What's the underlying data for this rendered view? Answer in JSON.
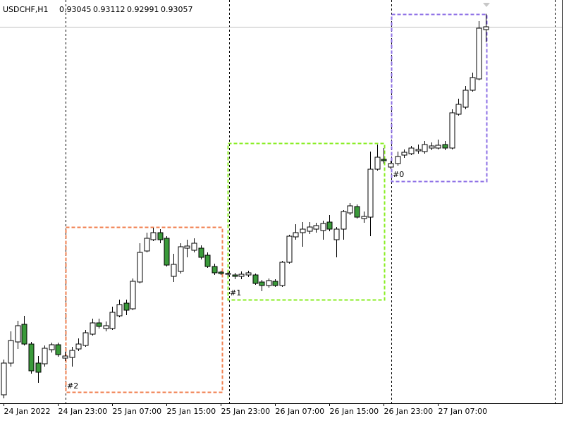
{
  "chart_data": {
    "type": "candlestick",
    "title": "USDCHF,H1",
    "categories": [
      "24 Jan 2022",
      null,
      null,
      null,
      null,
      null,
      null,
      null,
      "24 Jan 23:00",
      null,
      null,
      null,
      null,
      null,
      null,
      null,
      "25 Jan 07:00",
      null,
      null,
      null,
      null,
      null,
      null,
      null,
      "25 Jan 15:00",
      null,
      null,
      null,
      null,
      null,
      null,
      null,
      "25 Jan 23:00",
      null,
      null,
      null,
      null,
      null,
      null,
      null,
      "26 Jan 07:00",
      null,
      null,
      null,
      null,
      null,
      null,
      null,
      "26 Jan 15:00",
      null,
      null,
      null,
      null,
      null,
      null,
      null,
      "26 Jan 23:00",
      null,
      null,
      null,
      null,
      null,
      null,
      null,
      "27 Jan 07:00",
      null,
      null,
      null,
      null,
      null,
      null,
      null
    ],
    "open": [
      0.91491,
      0.91626,
      0.91716,
      0.91791,
      0.91707,
      0.91626,
      0.91623,
      0.91683,
      0.91704,
      0.91647,
      0.9165,
      0.91686,
      0.91701,
      0.91749,
      0.91797,
      0.91773,
      0.91773,
      0.91827,
      0.91881,
      0.91857,
      0.91971,
      0.92103,
      0.92151,
      0.92181,
      0.92157,
      0.91995,
      0.92016,
      0.92115,
      0.92106,
      0.92115,
      0.92085,
      0.92037,
      0.92013,
      0.92004,
      0.92001,
      0.91995,
      0.92001,
      0.92001,
      0.91971,
      0.91956,
      0.91974,
      0.91956,
      0.92055,
      0.92163,
      0.92181,
      0.92187,
      0.92196,
      0.9219,
      0.92226,
      0.92151,
      0.92196,
      0.92265,
      0.92292,
      0.92241,
      0.92247,
      0.92451,
      0.92493,
      0.9246,
      0.92475,
      0.92511,
      0.92517,
      0.92529,
      0.92526,
      0.92541,
      0.92541,
      0.92556,
      0.92541,
      0.92685,
      0.92715,
      0.92787,
      0.92835,
      0.93045
    ],
    "high": [
      0.91641,
      0.91761,
      0.91806,
      0.91827,
      0.91716,
      0.91656,
      0.91701,
      0.91713,
      0.91713,
      0.91671,
      0.91695,
      0.91731,
      0.91767,
      0.91815,
      0.91815,
      0.91803,
      0.91866,
      0.91896,
      0.91896,
      0.91986,
      0.92136,
      0.92181,
      0.92202,
      0.92196,
      0.92166,
      0.92091,
      0.92136,
      0.92151,
      0.92157,
      0.92127,
      0.92097,
      0.92049,
      0.92019,
      0.92013,
      0.9201,
      0.92016,
      0.92019,
      0.92007,
      0.9198,
      0.91986,
      0.91983,
      0.92061,
      0.92172,
      0.92217,
      0.92226,
      0.92226,
      0.92223,
      0.92232,
      0.92256,
      0.92205,
      0.92277,
      0.92307,
      0.92301,
      0.92271,
      0.92526,
      0.92556,
      0.92541,
      0.92487,
      0.92526,
      0.92535,
      0.9255,
      0.92556,
      0.92571,
      0.92565,
      0.92577,
      0.92571,
      0.92706,
      0.92751,
      0.92805,
      0.92862,
      0.93081,
      0.93112
    ],
    "low": [
      0.91476,
      0.91611,
      0.91686,
      0.91701,
      0.91581,
      0.91542,
      0.91611,
      0.91671,
      0.91653,
      0.91635,
      0.91611,
      0.91677,
      0.91695,
      0.91743,
      0.91773,
      0.91761,
      0.91767,
      0.91821,
      0.9183,
      0.91851,
      0.91965,
      0.92097,
      0.92145,
      0.92136,
      0.92037,
      0.91971,
      0.92007,
      0.92076,
      0.92097,
      0.92067,
      0.92031,
      0.92001,
      0.92001,
      0.91995,
      0.91983,
      0.91983,
      0.91992,
      0.91959,
      0.91932,
      0.91947,
      0.9195,
      0.9195,
      0.92049,
      0.92151,
      0.92121,
      0.92175,
      0.92181,
      0.92151,
      0.92187,
      0.92076,
      0.92151,
      0.92256,
      0.92241,
      0.92223,
      0.92166,
      0.92445,
      0.92475,
      0.92451,
      0.92466,
      0.92499,
      0.92511,
      0.92517,
      0.92517,
      0.92532,
      0.92535,
      0.92532,
      0.92535,
      0.92679,
      0.92706,
      0.92781,
      0.92829,
      0.92991
    ],
    "close": [
      0.91626,
      0.91722,
      0.91785,
      0.91707,
      0.91593,
      0.91587,
      0.91689,
      0.91704,
      0.91662,
      0.91656,
      0.9168,
      0.91707,
      0.91755,
      0.91797,
      0.91782,
      0.91785,
      0.91842,
      0.91875,
      0.91851,
      0.91974,
      0.92097,
      0.92157,
      0.92181,
      0.92151,
      0.92043,
      0.92046,
      0.92121,
      0.92124,
      0.92136,
      0.92076,
      0.92037,
      0.9201,
      0.92007,
      0.92007,
      0.91995,
      0.92004,
      0.9201,
      0.91965,
      0.91956,
      0.91977,
      0.91956,
      0.92055,
      0.92166,
      0.92181,
      0.92196,
      0.92205,
      0.92211,
      0.9222,
      0.92196,
      0.92196,
      0.92271,
      0.92295,
      0.92247,
      0.9225,
      0.92451,
      0.92502,
      0.92487,
      0.92475,
      0.92505,
      0.92523,
      0.92541,
      0.92535,
      0.92556,
      0.9255,
      0.92553,
      0.92541,
      0.92691,
      0.92727,
      0.92787,
      0.92841,
      0.93051,
      0.93057
    ],
    "ylim": [
      0.91455,
      0.93141
    ],
    "bull_color": "#ffffff",
    "bear_color": "#3a9a3a",
    "annotations": [
      {
        "label": "#2",
        "color": "#f08050"
      },
      {
        "label": "#1",
        "color": "#88ee22"
      },
      {
        "label": "#0",
        "color": "#8e70e6"
      }
    ]
  }
}
